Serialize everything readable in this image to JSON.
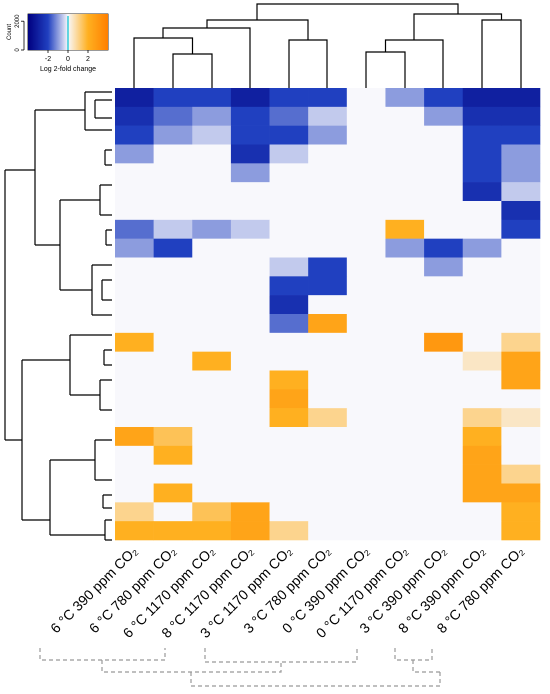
{
  "chart_data": {
    "type": "heatmap",
    "categories": [
      "6 °C 390 ppm CO₂",
      "6 °C 780 ppm CO₂",
      "6 °C 1170 ppm CO₂",
      "8 °C 1170 ppm CO₂",
      "3 °C 1170 ppm CO₂",
      "3 °C 780 ppm CO₂",
      "0 °C 390 ppm CO₂",
      "0 °C 1170 ppm CO₂",
      "3 °C 390 ppm CO₂",
      "8 °C 390 ppm CO₂",
      "8 °C 780 ppm CO₂"
    ],
    "values": [
      [
        -3,
        -2,
        -2,
        -3,
        -2,
        -2,
        0,
        -1,
        -2,
        -3,
        -3
      ],
      [
        -2.5,
        -1.5,
        -1,
        -2,
        -1.5,
        -0.5,
        0,
        0,
        -1,
        -2.5,
        -2.5
      ],
      [
        -2,
        -1,
        -0.5,
        -2,
        -2,
        -1,
        0,
        0,
        0,
        -2,
        -2
      ],
      [
        -1,
        0,
        0,
        -2.5,
        -0.5,
        0,
        0,
        0,
        0,
        -2,
        -1
      ],
      [
        0,
        0,
        0,
        -1,
        0,
        0,
        0,
        0,
        0,
        -2,
        -1
      ],
      [
        0,
        0,
        0,
        0,
        0,
        0,
        0,
        0,
        0,
        -2.5,
        -0.5
      ],
      [
        0,
        0,
        0,
        0,
        0,
        0,
        0,
        0,
        0,
        0,
        -2.5
      ],
      [
        -1.5,
        -0.5,
        -1,
        -0.5,
        0,
        0,
        0,
        2,
        0,
        0,
        -2
      ],
      [
        -1,
        -2,
        0,
        0,
        0,
        0,
        0,
        -1,
        -2,
        -1,
        0
      ],
      [
        0,
        0,
        0,
        0,
        -0.5,
        -2,
        0,
        0,
        -1,
        0,
        0
      ],
      [
        0,
        0,
        0,
        0,
        -2,
        -2,
        0,
        0,
        0,
        0,
        0
      ],
      [
        0,
        0,
        0,
        0,
        -2.5,
        0,
        0,
        0,
        0,
        0,
        0
      ],
      [
        0,
        0,
        0,
        0,
        -1.5,
        2.5,
        0,
        0,
        0,
        0,
        0
      ],
      [
        2,
        0,
        0,
        0,
        0,
        0,
        0,
        0,
        3,
        0,
        1
      ],
      [
        0,
        0,
        2,
        0,
        0,
        0,
        0,
        0,
        0,
        0.5,
        2.5
      ],
      [
        0,
        0,
        0,
        0,
        2,
        0,
        0,
        0,
        0,
        0,
        2.5
      ],
      [
        0,
        0,
        0,
        0,
        2.5,
        0,
        0,
        0,
        0,
        0,
        0
      ],
      [
        0,
        0,
        0,
        0,
        2,
        1,
        0,
        0,
        0,
        1,
        0.5
      ],
      [
        2.5,
        1.5,
        0,
        0,
        0,
        0,
        0,
        0,
        0,
        2,
        0
      ],
      [
        0,
        2,
        0,
        0,
        0,
        0,
        0,
        0,
        0,
        2.5,
        0
      ],
      [
        0,
        0,
        0,
        0,
        0,
        0,
        0,
        0,
        0,
        2.5,
        1
      ],
      [
        0,
        2,
        0,
        0,
        0,
        0,
        0,
        0,
        0,
        2.5,
        2.5
      ],
      [
        1,
        0,
        1.5,
        2.5,
        0,
        0,
        0,
        0,
        0,
        0,
        2
      ],
      [
        2,
        2,
        2,
        2.5,
        1,
        0,
        0,
        0,
        0,
        0,
        2
      ]
    ],
    "colorbar": {
      "title": "Log 2-fold change",
      "lim": [
        -4,
        4
      ],
      "ticks": [
        -2,
        0,
        2
      ],
      "count_label": "Count",
      "count_lim": [
        0,
        2500
      ],
      "count_ticks": [
        0,
        2000
      ]
    }
  }
}
